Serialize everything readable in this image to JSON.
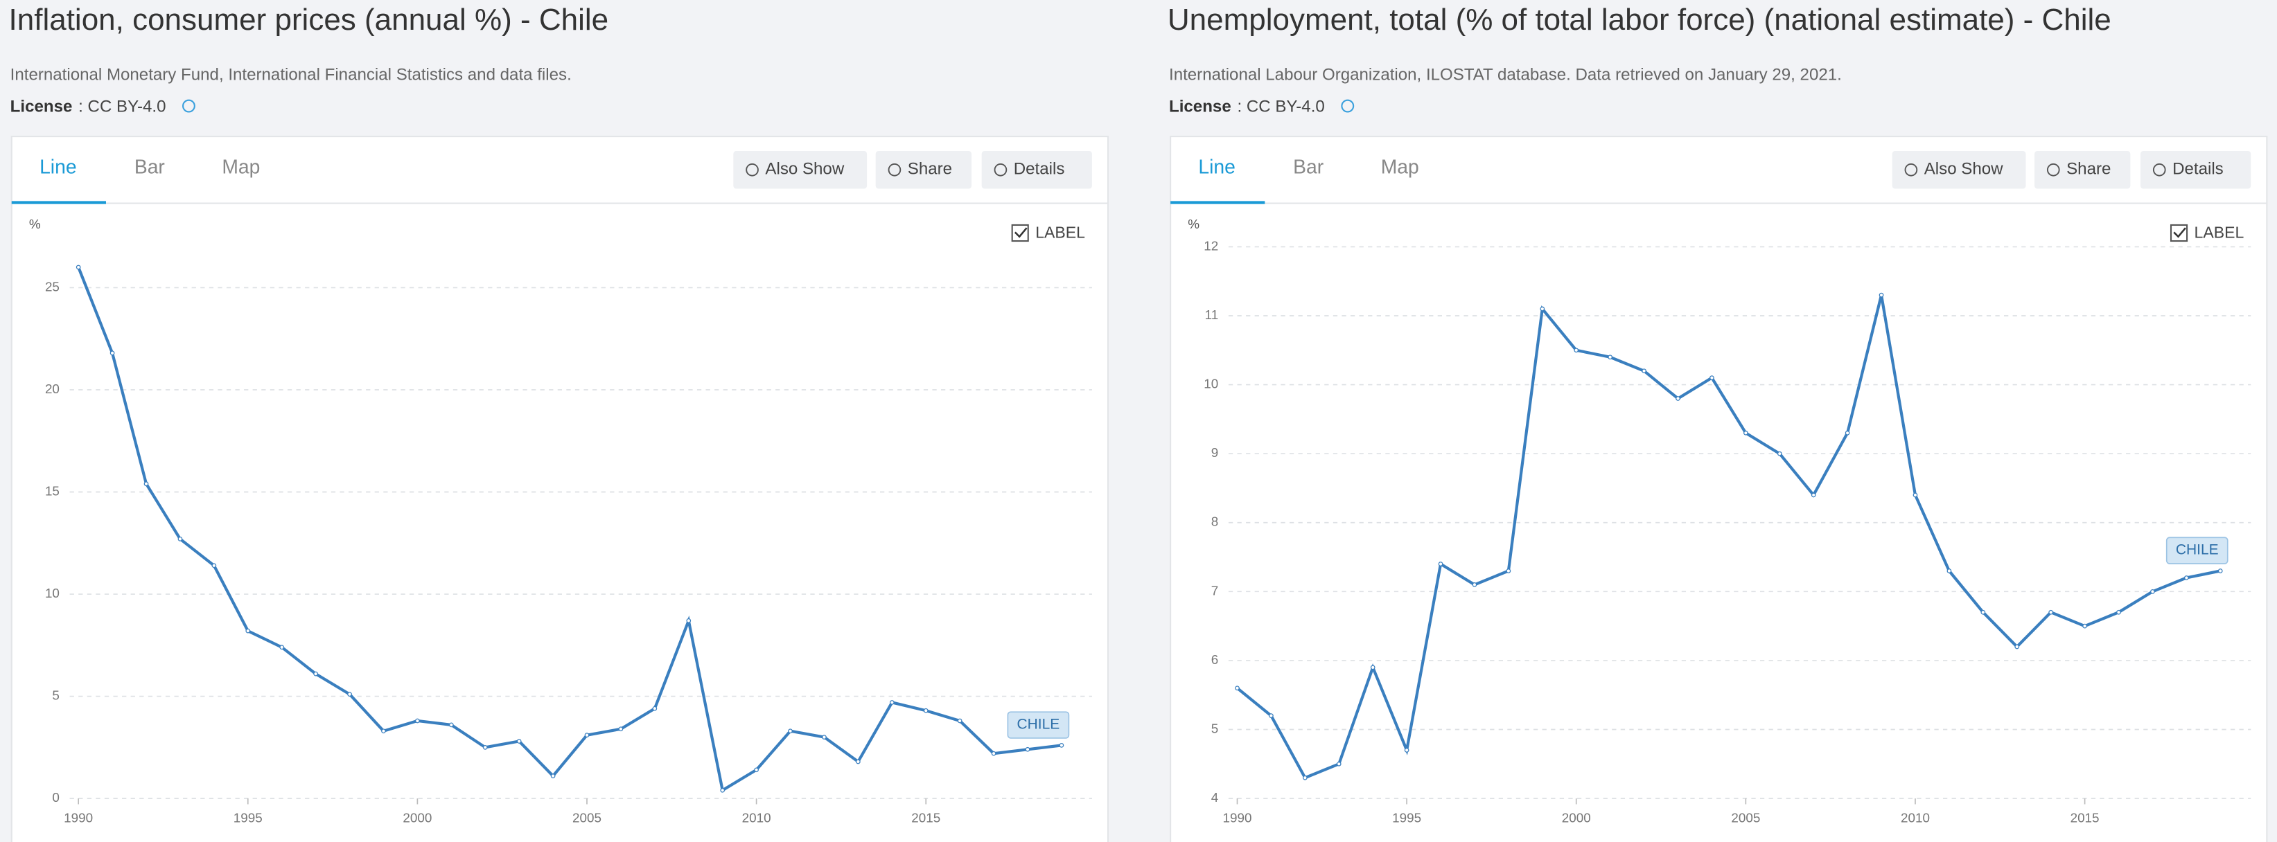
{
  "ui": {
    "tabs": [
      "Line",
      "Bar",
      "Map"
    ],
    "buttons": [
      "Also Show",
      "Share",
      "Details"
    ],
    "label_toggle": "LABEL",
    "license_label": "License"
  },
  "chart_data": [
    {
      "type": "line",
      "title": "Inflation, consumer prices (annual %) - Chile",
      "subtitle": "International Monetary Fund, International Financial Statistics and data files.",
      "license": ": CC BY-4.0",
      "y_label": "%",
      "x": [
        1990,
        1991,
        1992,
        1993,
        1994,
        1995,
        1996,
        1997,
        1998,
        1999,
        2000,
        2001,
        2002,
        2003,
        2004,
        2005,
        2006,
        2007,
        2008,
        2009,
        2010,
        2011,
        2012,
        2013,
        2014,
        2015,
        2016,
        2017,
        2018,
        2019
      ],
      "xlim": [
        1990,
        2019
      ],
      "xticks": [
        1990,
        1995,
        2000,
        2005,
        2010,
        2015
      ],
      "ylim": [
        0,
        27
      ],
      "yticks": [
        0,
        5,
        10,
        15,
        20,
        25
      ],
      "grid": true,
      "series": [
        {
          "name": "CHILE",
          "color": "#3a7fbf",
          "values": [
            26.0,
            21.8,
            15.4,
            12.7,
            11.4,
            8.2,
            7.4,
            6.1,
            5.1,
            3.3,
            3.8,
            3.6,
            2.5,
            2.8,
            1.1,
            3.1,
            3.4,
            4.4,
            8.7,
            0.4,
            1.4,
            3.3,
            3.0,
            1.8,
            4.7,
            4.3,
            3.8,
            2.2,
            2.4,
            2.6
          ]
        }
      ]
    },
    {
      "type": "line",
      "title": "Unemployment, total (% of total labor force) (national estimate) - Chile",
      "subtitle": "International Labour Organization, ILOSTAT database. Data retrieved on January 29, 2021.",
      "license": ": CC BY-4.0",
      "y_label": "%",
      "x": [
        1990,
        1991,
        1992,
        1993,
        1994,
        1995,
        1996,
        1997,
        1998,
        1999,
        2000,
        2001,
        2002,
        2003,
        2004,
        2005,
        2006,
        2007,
        2008,
        2009,
        2010,
        2011,
        2012,
        2013,
        2014,
        2015,
        2016,
        2017,
        2018,
        2019
      ],
      "xlim": [
        1990,
        2019
      ],
      "xticks": [
        1990,
        1995,
        2000,
        2005,
        2010,
        2015
      ],
      "ylim": [
        4,
        12
      ],
      "yticks": [
        4,
        5,
        6,
        7,
        8,
        9,
        10,
        11,
        12
      ],
      "grid": true,
      "series": [
        {
          "name": "CHILE",
          "color": "#3a7fbf",
          "values": [
            5.6,
            5.2,
            4.3,
            4.5,
            5.9,
            4.7,
            7.4,
            7.1,
            7.3,
            11.1,
            10.5,
            10.4,
            10.2,
            9.8,
            10.1,
            9.3,
            9.0,
            8.4,
            9.3,
            11.3,
            8.4,
            7.3,
            6.7,
            6.2,
            6.7,
            6.5,
            6.7,
            7.0,
            7.2,
            7.3
          ]
        }
      ]
    }
  ]
}
